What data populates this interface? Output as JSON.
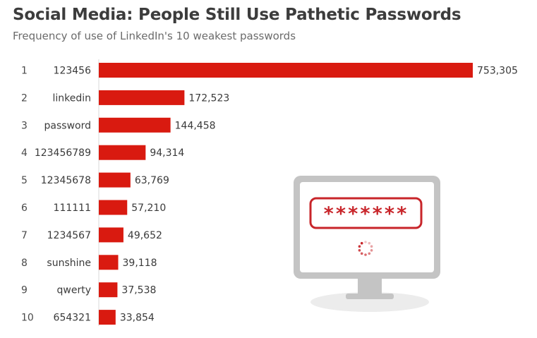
{
  "title": "Social Media: People Still Use Pathetic Passwords",
  "subtitle": "Frequency of use of LinkedIn's 10 weakest passwords",
  "colors": {
    "bar": "#d91a10",
    "monitor_frame": "#c4c4c4",
    "accent": "#c8252a"
  },
  "illustration": {
    "masked_password": "*******",
    "icon": "monitor-password-icon"
  },
  "chart_data": {
    "type": "bar",
    "orientation": "horizontal",
    "title": "Social Media: People Still Use Pathetic Passwords",
    "subtitle": "Frequency of use of LinkedIn's 10 weakest passwords",
    "ranks": [
      "1",
      "2",
      "3",
      "4",
      "5",
      "6",
      "7",
      "8",
      "9",
      "10"
    ],
    "categories": [
      "123456",
      "linkedin",
      "password",
      "123456789",
      "12345678",
      "111111",
      "1234567",
      "sunshine",
      "qwerty",
      "654321"
    ],
    "values": [
      753305,
      172523,
      144458,
      94314,
      63769,
      57210,
      49652,
      39118,
      37538,
      33854
    ],
    "value_labels": [
      "753,305",
      "172,523",
      "144,458",
      "94,314",
      "63,769",
      "57,210",
      "49,652",
      "39,118",
      "37,538",
      "33,854"
    ],
    "xlim": [
      0,
      753305
    ],
    "grid": false,
    "legend": "none"
  }
}
